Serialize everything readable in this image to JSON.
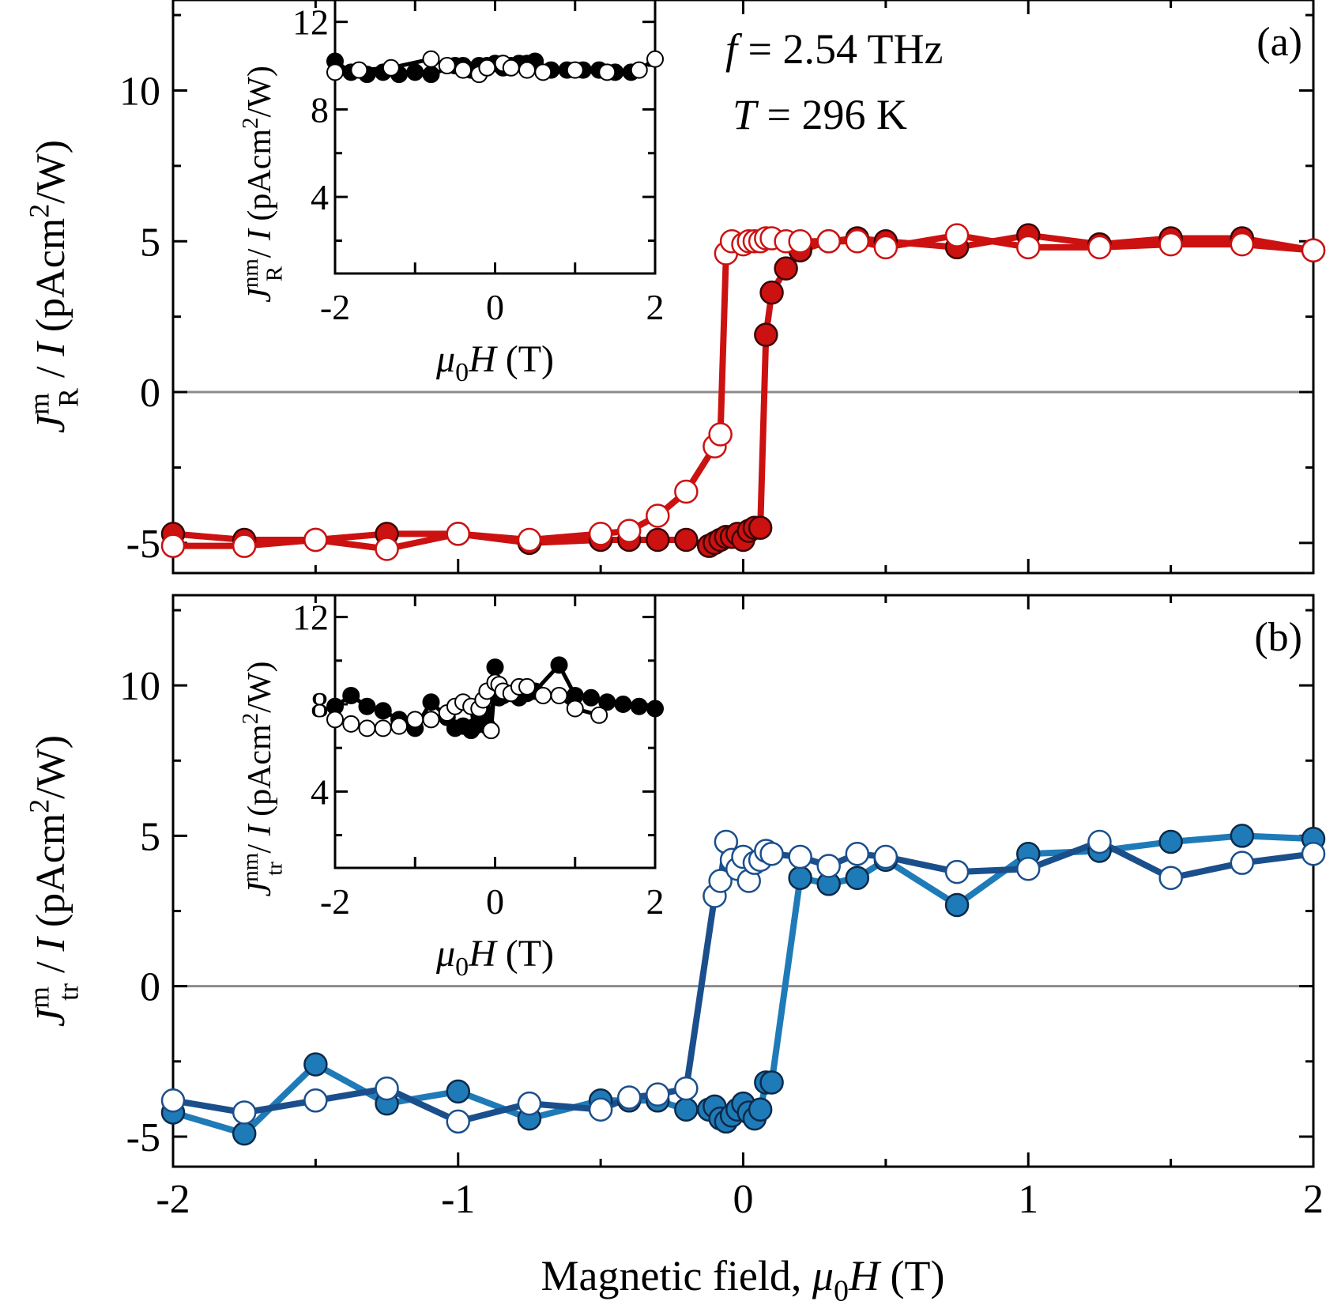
{
  "xlabel": "Magnetic field, μ0H (T)",
  "colors": {
    "red": "#cc1111",
    "red_dark": "#a80e0e",
    "blue_dark": "#1a4f8c",
    "blue_light": "#1f7bb8",
    "inset_line": "#000000",
    "zero_line": "#8c8c8c"
  },
  "annotation": {
    "freq_italic": "f",
    "freq_rest": " = 2.54 THz",
    "temp_italic": "T",
    "temp_rest": " = 296 K"
  },
  "chart_data": [
    {
      "type": "line",
      "panel_label": "(a)",
      "ylabel": "J_R^m / I (pAcm²/W)",
      "xlim": [
        -2,
        2
      ],
      "ylim": [
        -6,
        13
      ],
      "x_ticks": [
        -2,
        -1,
        0,
        1,
        2
      ],
      "y_ticks": [
        -5,
        0,
        5,
        10
      ],
      "zero_line": true,
      "series": [
        {
          "marker": "filled",
          "color_key": "red",
          "x": [
            -2,
            -1.75,
            -1.5,
            -1.25,
            -1,
            -0.75,
            -0.5,
            -0.4,
            -0.3,
            -0.2,
            -0.12,
            -0.1,
            -0.08,
            -0.06,
            -0.04,
            -0.02,
            0,
            0.02,
            0.04,
            0.06,
            0.08,
            0.1,
            0.15,
            0.2,
            0.3,
            0.4,
            0.5,
            0.75,
            1,
            1.25,
            1.5,
            1.75,
            2
          ],
          "y": [
            -4.7,
            -4.9,
            -4.9,
            -4.7,
            -4.7,
            -5.0,
            -4.9,
            -4.9,
            -4.9,
            -4.9,
            -5.1,
            -5.0,
            -4.9,
            -4.8,
            -4.8,
            -4.7,
            -4.9,
            -4.6,
            -4.5,
            -4.5,
            1.9,
            3.3,
            4.1,
            4.7,
            5.0,
            5.1,
            5.0,
            4.8,
            5.2,
            4.9,
            5.1,
            5.1,
            4.7
          ]
        },
        {
          "marker": "open",
          "color_key": "red",
          "x": [
            -2,
            -1.75,
            -1.5,
            -1.25,
            -1,
            -0.75,
            -0.5,
            -0.4,
            -0.3,
            -0.2,
            -0.1,
            -0.08,
            -0.06,
            -0.04,
            0,
            0.02,
            0.04,
            0.06,
            0.08,
            0.1,
            0.15,
            0.2,
            0.3,
            0.4,
            0.5,
            0.75,
            1,
            1.25,
            1.5,
            1.75,
            2
          ],
          "y": [
            -5.1,
            -5.1,
            -4.9,
            -5.2,
            -4.7,
            -4.9,
            -4.7,
            -4.6,
            -4.1,
            -3.3,
            -1.8,
            -1.4,
            4.6,
            5.0,
            4.9,
            5.0,
            5.0,
            5.0,
            5.1,
            5.1,
            5.0,
            5.0,
            5.0,
            5.0,
            4.8,
            5.2,
            4.8,
            4.8,
            4.9,
            4.9,
            4.7
          ]
        }
      ],
      "inset": {
        "ylabel": "J_R^nm / I (pAcm²/W)",
        "xlabel": "μ0H (T)",
        "xlim": [
          -2,
          2
        ],
        "ylim": [
          0.5,
          13
        ],
        "x_ticks": [
          -2,
          0,
          2
        ],
        "y_ticks": [
          4,
          8,
          12
        ],
        "series": [
          {
            "marker": "filled",
            "x": [
              -2,
              -1.8,
              -1.6,
              -1.4,
              -1.2,
              -1.0,
              -0.8,
              -0.5,
              -0.4,
              -0.3,
              -0.2,
              -0.1,
              0,
              0.1,
              0.2,
              0.3,
              0.4,
              0.5,
              0.7,
              0.9,
              1.1,
              1.3,
              1.5,
              1.7
            ],
            "y": [
              10.2,
              9.7,
              9.6,
              9.7,
              9.6,
              9.7,
              9.6,
              10.0,
              10.0,
              9.8,
              10.0,
              10.0,
              10.1,
              9.9,
              10.0,
              10.1,
              10.1,
              10.2,
              9.8,
              9.8,
              9.8,
              9.8,
              9.7,
              9.7
            ]
          },
          {
            "marker": "open",
            "x": [
              -2,
              -1.7,
              -1.3,
              -0.8,
              -0.6,
              -0.4,
              -0.2,
              -0.1,
              0.1,
              0.2,
              0.4,
              0.6,
              1.0,
              1.4,
              1.8,
              2
            ],
            "y": [
              9.7,
              9.8,
              9.9,
              10.3,
              10.0,
              9.8,
              9.6,
              9.9,
              10.1,
              9.9,
              9.8,
              9.7,
              9.8,
              9.7,
              9.8,
              10.3
            ]
          }
        ]
      }
    },
    {
      "type": "line",
      "panel_label": "(b)",
      "ylabel": "J_tr^m / I (pAcm²/W)",
      "xlim": [
        -2,
        2
      ],
      "ylim": [
        -6,
        13
      ],
      "x_ticks": [
        -2,
        -1,
        0,
        1,
        2
      ],
      "y_ticks": [
        -5,
        0,
        5,
        10
      ],
      "zero_line": true,
      "series": [
        {
          "marker": "filled",
          "color_key": "blue_light",
          "x": [
            -2,
            -1.75,
            -1.5,
            -1.25,
            -1,
            -0.75,
            -0.5,
            -0.4,
            -0.3,
            -0.2,
            -0.12,
            -0.1,
            -0.08,
            -0.06,
            -0.04,
            -0.02,
            0,
            0.02,
            0.04,
            0.06,
            0.08,
            0.1,
            0.2,
            0.3,
            0.4,
            0.5,
            0.75,
            1,
            1.25,
            1.5,
            1.75,
            2
          ],
          "y": [
            -4.2,
            -4.9,
            -2.6,
            -3.9,
            -3.5,
            -4.4,
            -3.8,
            -3.8,
            -3.8,
            -4.1,
            -4.1,
            -4.0,
            -4.4,
            -4.5,
            -4.3,
            -4.1,
            -3.9,
            -4.2,
            -4.4,
            -4.1,
            -3.2,
            -3.2,
            3.6,
            3.4,
            3.6,
            4.2,
            2.7,
            4.4,
            4.5,
            4.8,
            5.0,
            4.9
          ]
        },
        {
          "marker": "open",
          "color_key": "blue_dark",
          "x": [
            -2,
            -1.75,
            -1.5,
            -1.25,
            -1,
            -0.75,
            -0.5,
            -0.4,
            -0.3,
            -0.2,
            -0.1,
            -0.08,
            -0.06,
            -0.04,
            -0.02,
            0,
            0.02,
            0.04,
            0.06,
            0.08,
            0.1,
            0.2,
            0.3,
            0.4,
            0.5,
            0.75,
            1,
            1.25,
            1.5,
            1.75,
            2
          ],
          "y": [
            -3.8,
            -4.2,
            -3.8,
            -3.4,
            -4.5,
            -3.9,
            -4.1,
            -3.7,
            -3.6,
            -3.4,
            3.0,
            3.5,
            4.8,
            4.2,
            3.9,
            4.3,
            3.5,
            4.1,
            4.2,
            4.5,
            4.4,
            4.3,
            4.0,
            4.4,
            4.3,
            3.8,
            3.9,
            4.8,
            3.6,
            4.1,
            4.4
          ]
        }
      ],
      "inset": {
        "ylabel": "J_tr^nm / I (pAcm²/W)",
        "xlabel": "μ0H (T)",
        "xlim": [
          -2,
          2
        ],
        "ylim": [
          0.5,
          13
        ],
        "x_ticks": [
          -2,
          0,
          2
        ],
        "y_ticks": [
          4,
          8,
          12
        ],
        "series": [
          {
            "marker": "filled",
            "x": [
              -2,
              -1.8,
              -1.6,
              -1.4,
              -1.2,
              -1.0,
              -0.8,
              -0.6,
              -0.5,
              -0.4,
              -0.3,
              -0.25,
              -0.2,
              -0.15,
              -0.1,
              -0.05,
              0,
              0.05,
              0.1,
              0.2,
              0.3,
              0.4,
              0.5,
              0.8,
              1.0,
              1.2,
              1.4,
              1.6,
              1.8,
              2
            ],
            "y": [
              7.9,
              8.4,
              7.9,
              7.7,
              7.3,
              6.9,
              8.1,
              7.4,
              6.9,
              7.0,
              6.8,
              7.0,
              7.5,
              7.1,
              7.0,
              6.8,
              9.7,
              8.3,
              8.4,
              8.5,
              8.3,
              8.5,
              8.6,
              9.8,
              8.4,
              8.3,
              8.1,
              8.0,
              7.9,
              7.8
            ]
          },
          {
            "marker": "open",
            "x": [
              -2,
              -1.8,
              -1.6,
              -1.4,
              -1.2,
              -1.0,
              -0.8,
              -0.6,
              -0.5,
              -0.4,
              -0.3,
              -0.2,
              -0.15,
              -0.1,
              -0.05,
              0,
              0.05,
              0.1,
              0.2,
              0.3,
              0.4,
              0.6,
              0.8,
              1.0,
              1.3
            ],
            "y": [
              7.3,
              7.1,
              6.9,
              6.9,
              7.0,
              7.3,
              7.3,
              7.6,
              7.9,
              8.1,
              7.9,
              7.8,
              8.2,
              8.6,
              6.8,
              9.0,
              8.9,
              8.6,
              8.5,
              8.8,
              8.8,
              8.4,
              8.4,
              7.8,
              7.5
            ]
          }
        ]
      }
    }
  ]
}
